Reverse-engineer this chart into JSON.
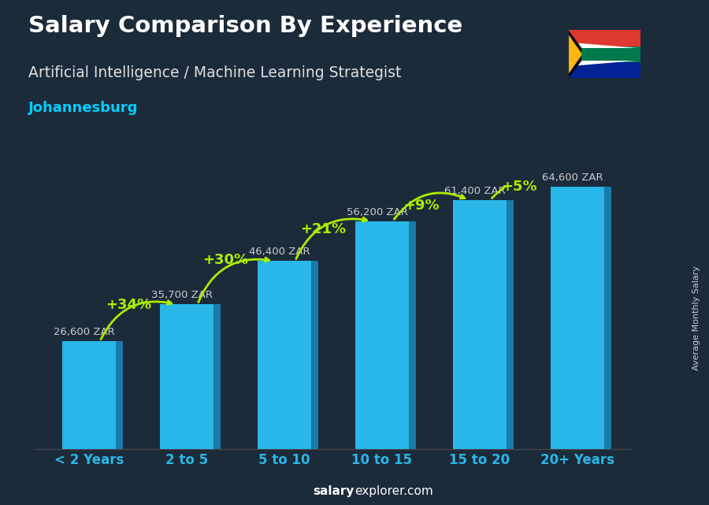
{
  "title": "Salary Comparison By Experience",
  "subtitle": "Artificial Intelligence / Machine Learning Strategist",
  "city": "Johannesburg",
  "ylabel": "Average Monthly Salary",
  "footer_salary": "salary",
  "footer_explorer": "explorer.com",
  "categories": [
    "< 2 Years",
    "2 to 5",
    "5 to 10",
    "10 to 15",
    "15 to 20",
    "20+ Years"
  ],
  "values": [
    26600,
    35700,
    46400,
    56200,
    61400,
    64600
  ],
  "value_labels": [
    "26,600 ZAR",
    "35,700 ZAR",
    "46,400 ZAR",
    "56,200 ZAR",
    "61,400 ZAR",
    "64,600 ZAR"
  ],
  "pct_changes": [
    "+34%",
    "+30%",
    "+21%",
    "+9%",
    "+5%"
  ],
  "bar_front_color": "#29b6e8",
  "bar_side_color": "#1a7aaa",
  "bar_top_color": "#5dd0f5",
  "bg_color": "#1c2b3a",
  "title_color": "#ffffff",
  "subtitle_color": "#e0e0e0",
  "city_color": "#00cfff",
  "value_label_color": "#cccccc",
  "pct_color": "#aaee00",
  "arrow_color": "#aaee00",
  "xlabel_color": "#29b6e8",
  "footer_color": "#aaaaaa",
  "ylabel_color": "#cccccc",
  "spine_color": "#444444"
}
